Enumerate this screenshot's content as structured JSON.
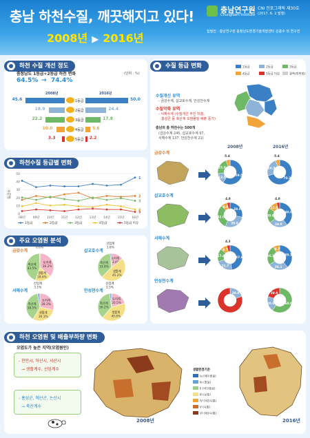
{
  "header": {
    "title": "충남 하천수질, 깨끗해지고 있다!",
    "year_from": "2008년",
    "year_to": "2016년",
    "org_name": "충남연구원",
    "org_en": "ChungNam Institute",
    "series": "CNI 인포그래픽 제30호",
    "date": "(2017. 6. 2 발행)",
    "authors": "집필진 : 충남연구원 충청남도환경기술개발센터 김홍수 외 연구진"
  },
  "sections": {
    "s1": "하천 수질 개선 정도",
    "s2": "하천수질 등급별 변화",
    "s3": "주요 오염원 분석",
    "s4": "수질 등급 변화",
    "s5": "하천 오염원 및 배출부하량 변화"
  },
  "s1": {
    "subtitle": "충청남도 1등급+2등급 하천 변화",
    "unit": "(단위 : %)",
    "from_pct": "64.5%",
    "arrow": "→",
    "to_pct": "74.4%",
    "col_left": "2008년",
    "col_right": "2016년"
  },
  "grades": [
    {
      "label": "1등급",
      "v2008": 45.6,
      "v2016": 50.0,
      "t2008": "45.6",
      "t2016": "50.0",
      "color": "#3b7fc4"
    },
    {
      "label": "2등급",
      "v2008": 18.9,
      "v2016": 24.4,
      "t2008": "18.9",
      "t2016": "24.4",
      "color": "#8fb3d6"
    },
    {
      "label": "3등급",
      "v2008": 22.2,
      "v2016": 17.8,
      "t2008": "22.2",
      "t2016": "17.8",
      "color": "#6fb865"
    },
    {
      "label": "4등급",
      "v2008": 10.0,
      "v2016": 5.6,
      "t2008": "10.0",
      "t2016": "5.6",
      "color": "#f0a43a"
    },
    {
      "label": "5등급",
      "v2008": 3.3,
      "v2016": 2.2,
      "t2008": "3.3",
      "t2016": "2.2",
      "color": "#d9342b"
    }
  ],
  "chart_data": {
    "type": "line",
    "ylabel": "등급수",
    "categories": [
      "08년",
      "09년",
      "10년",
      "11년",
      "12년",
      "13년",
      "14년",
      "15년",
      "16년"
    ],
    "ylim": [
      0,
      50
    ],
    "yticks": [
      0,
      10,
      20,
      30,
      40,
      50
    ],
    "series": [
      {
        "name": "1등급",
        "color": "#3b7fc4",
        "values": [
          41,
          33,
          35,
          34,
          34,
          37,
          35,
          36,
          45
        ],
        "end_label": "1"
      },
      {
        "name": "2등급",
        "color": "#e57b2b",
        "values": [
          17,
          22,
          20,
          24,
          26,
          19,
          22,
          21,
          22
        ],
        "end_label": "2"
      },
      {
        "name": "3등급",
        "color": "#6fb865",
        "values": [
          20,
          17,
          21,
          18,
          16,
          20,
          17,
          19,
          16
        ],
        "end_label": "3"
      },
      {
        "name": "4등급",
        "color": "#f2c12e",
        "values": [
          9,
          13,
          10,
          11,
          9,
          8,
          11,
          9,
          5
        ],
        "end_label": "4"
      },
      {
        "name": "5등급 이상",
        "color": "#d9342b",
        "values": [
          3,
          5,
          4,
          3,
          5,
          6,
          5,
          5,
          2
        ],
        "end_label": "5"
      }
    ]
  },
  "s3": {
    "basins": [
      {
        "name": "금강수계",
        "slices": [
          {
            "label": "토지계",
            "value": 36.2,
            "text": "36.2%",
            "color": "#f4b6c8"
          },
          {
            "label": "생활계",
            "value": 18.6,
            "text": "18.6%",
            "color": "#f5e088"
          },
          {
            "label": "축산계",
            "value": 43.5,
            "text": "43.5%",
            "color": "#a7d48d"
          },
          {
            "label": "산업계",
            "value": 0.6,
            "text": "0.6%",
            "color": "#8ab8e0"
          }
        ]
      },
      {
        "name": "삽교호수계",
        "slices": [
          {
            "label": "토지계",
            "value": 13.4,
            "text": "13.4%",
            "color": "#f4b6c8"
          },
          {
            "label": "생활계",
            "value": 45.2,
            "text": "45.2%",
            "color": "#f5e088"
          },
          {
            "label": "축산계",
            "value": 33.8,
            "text": "33.8%",
            "color": "#a7d48d"
          },
          {
            "label": "산업계",
            "value": 1.6,
            "text": "1.6%",
            "color": "#8ab8e0"
          }
        ]
      },
      {
        "name": "서해수계",
        "slices": [
          {
            "label": "토지계",
            "value": 28.3,
            "text": "28.3%",
            "color": "#f4b6c8"
          },
          {
            "label": "생활계",
            "value": 30.1,
            "text": "30.1%",
            "color": "#f5e088"
          },
          {
            "label": "축산계",
            "value": 38.5,
            "text": "38.5%",
            "color": "#a7d48d"
          },
          {
            "label": "산업계",
            "value": 3.1,
            "text": "3.1%",
            "color": "#8ab8e0"
          }
        ]
      },
      {
        "name": "안성천수계",
        "slices": [
          {
            "label": "토지계",
            "value": 20.5,
            "text": "20.5%",
            "color": "#f4b6c8"
          },
          {
            "label": "생활계",
            "value": 40.8,
            "text": "40.8%",
            "color": "#f5e088"
          },
          {
            "label": "축산계",
            "value": 36.2,
            "text": "36.2%",
            "color": "#a7d48d"
          },
          {
            "label": "산업계",
            "value": 2.5,
            "text": "2.5%",
            "color": "#8ab8e0"
          }
        ]
      }
    ]
  },
  "s4": {
    "legend": [
      "1등급",
      "2등급",
      "3등급",
      "4등급",
      "5등급 이상",
      "결측(미측정)"
    ],
    "legend_colors": [
      "#3b7fc4",
      "#8fb3d6",
      "#6fb865",
      "#f0a43a",
      "#d9342b",
      "#cfcfcf"
    ],
    "improve_title": "수질개선 유역",
    "improve_body": "- 금강수계, 삽교호수계, 안성천수계",
    "worse_title": "수질악화 유역",
    "worse_body1": "- 서해수계 (수질개선 추진 미흡,",
    "worse_body2": "홍성군 등 축산계 오염물질 배출 증가)",
    "note1": "충남의 총 하천수는 500개",
    "note2": "(금강수계 245, 삽교호수계 97,",
    "note3": "서해수계 137, 안성천수계 21)",
    "col_2008": "2008년",
    "col_2016": "2016년",
    "basins": [
      {
        "name": "금강수계",
        "d2008": [
          {
            "v": 59.5,
            "t": "59.5",
            "c": "#3b7fc4"
          },
          {
            "v": 13.5,
            "t": "13.5",
            "c": "#8fb3d6"
          },
          {
            "v": 21.6,
            "t": "21.6",
            "c": "#6fb865"
          },
          {
            "v": 5.4,
            "t": "5.4",
            "c": "#f0a43a"
          }
        ],
        "d2016": [
          {
            "v": 70.3,
            "t": "70.3",
            "c": "#3b7fc4"
          },
          {
            "v": 24.3,
            "t": "24.3",
            "c": "#8fb3d6"
          },
          {
            "v": 5.4,
            "t": "5.4",
            "c": "#f0a43a"
          }
        ]
      },
      {
        "name": "삽교호수계",
        "d2008": [
          {
            "v": 28.0,
            "t": "28.0",
            "c": "#3b7fc4"
          },
          {
            "v": 28.0,
            "t": "28.0",
            "c": "#8fb3d6"
          },
          {
            "v": 32.0,
            "t": "32.0",
            "c": "#6fb865"
          },
          {
            "v": 8.0,
            "t": "8.0",
            "c": "#f0a43a"
          },
          {
            "v": 4.0,
            "t": "4.0",
            "c": "#d9342b"
          }
        ],
        "d2016": [
          {
            "v": 40.0,
            "t": "40.0",
            "c": "#3b7fc4"
          },
          {
            "v": 24.0,
            "t": "24.0",
            "c": "#8fb3d6"
          },
          {
            "v": 20.0,
            "t": "20.0",
            "c": "#6fb865"
          },
          {
            "v": 12.0,
            "t": "12.0",
            "c": "#f0a43a"
          },
          {
            "v": 4.0,
            "t": "4.0",
            "c": "#d9342b"
          }
        ]
      },
      {
        "name": "서해수계",
        "d2008": [
          {
            "v": 47.8,
            "t": "47.8",
            "c": "#3b7fc4"
          },
          {
            "v": 21.7,
            "t": "21.7",
            "c": "#8fb3d6"
          },
          {
            "v": 17.4,
            "t": "17.4",
            "c": "#6fb865"
          },
          {
            "v": 8.7,
            "t": "8.7",
            "c": "#f0a43a"
          },
          {
            "v": 4.3,
            "t": "4.3",
            "c": "#d9342b"
          }
        ],
        "d2016": [
          {
            "v": 39.1,
            "t": "39.1",
            "c": "#3b7fc4"
          },
          {
            "v": 26.1,
            "t": "26.1",
            "c": "#8fb3d6"
          },
          {
            "v": 26.1,
            "t": "26.1",
            "c": "#6fb865"
          },
          {
            "v": 8.7,
            "t": "8.7",
            "c": "#f0a43a"
          }
        ]
      },
      {
        "name": "안성천수계",
        "d2008": [
          {
            "v": 20.0,
            "t": "20.0",
            "c": "#8fb3d6"
          },
          {
            "v": 80.0,
            "t": "",
            "c": "#d9342b"
          }
        ],
        "d2016": [
          {
            "v": 60.0,
            "t": "60.0",
            "c": "#6fb865"
          },
          {
            "v": 20.0,
            "t": "20.0",
            "c": "#8fb3d6"
          },
          {
            "v": 20.0,
            "t": "20.0",
            "c": "#d9342b"
          }
        ]
      }
    ]
  },
  "s5": {
    "subtitle": "오염도가 높은 지역(오염원인)",
    "box1_line1": "- 천안시, 아산시, 서산시",
    "box1_line2": "→ 생활계수, 산업계수",
    "box2_line1": "- 홍성군, 예산군, 논산시",
    "box2_line2": "→ 축산계수",
    "map_label_2008": "2008년",
    "map_label_2016": "2016년",
    "legend_title": "생활환경기준",
    "legend_items": [
      "Ia (매우좋음)",
      "Ib (좋음)",
      "II (약간좋음)",
      "III (보통)",
      "IV (약간나쁨)",
      "V (나쁨)",
      "VI (매우나쁨)"
    ],
    "legend_colors": [
      "#2f6db5",
      "#66a3d6",
      "#9fd08a",
      "#f5e088",
      "#f0a43a",
      "#c96f2e",
      "#8b3b1c"
    ]
  }
}
